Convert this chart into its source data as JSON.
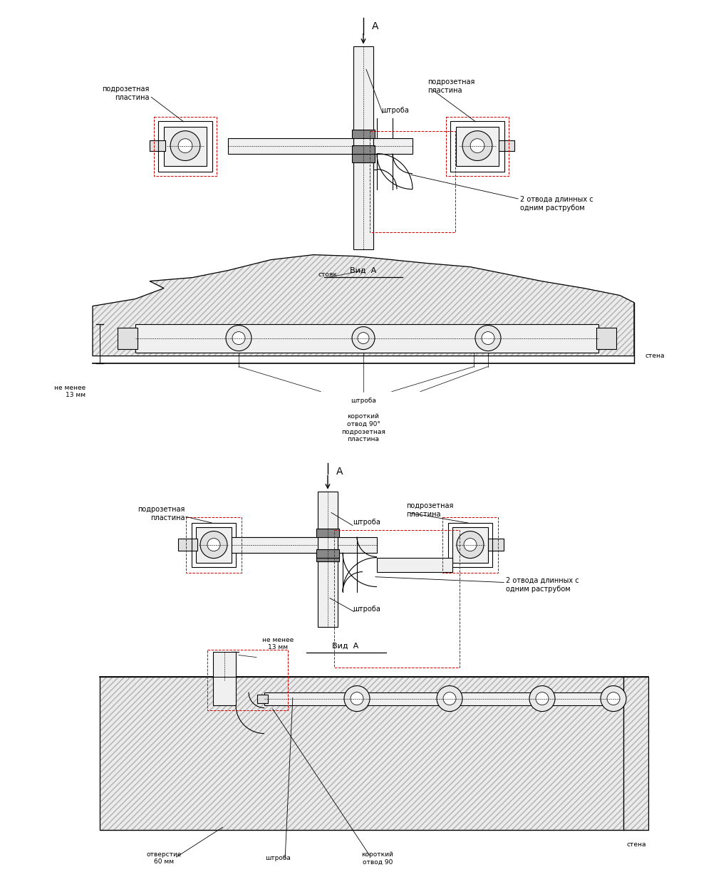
{
  "bg_color": "#ffffff",
  "lc": "#000000",
  "rc": "#cc0000",
  "lw": 0.8,
  "labels": {
    "podrozet": "подрозетная\nпластина",
    "shtroba": "штроба",
    "otv_dlin": "2 отвода длинных с\nодним раструбом",
    "vid_A": "Вид  A",
    "stoyan": "стояк",
    "stena": "стена",
    "ne_menee": "не менее\n13 мм",
    "korotkiy": "короткий\nотвод 90°",
    "podrozetnayal": "подрозетная\nпластина",
    "otverstie": "отверстие\n60 мм",
    "korotkiy2": "короткий\nотвод 90",
    "A_label": "A"
  }
}
